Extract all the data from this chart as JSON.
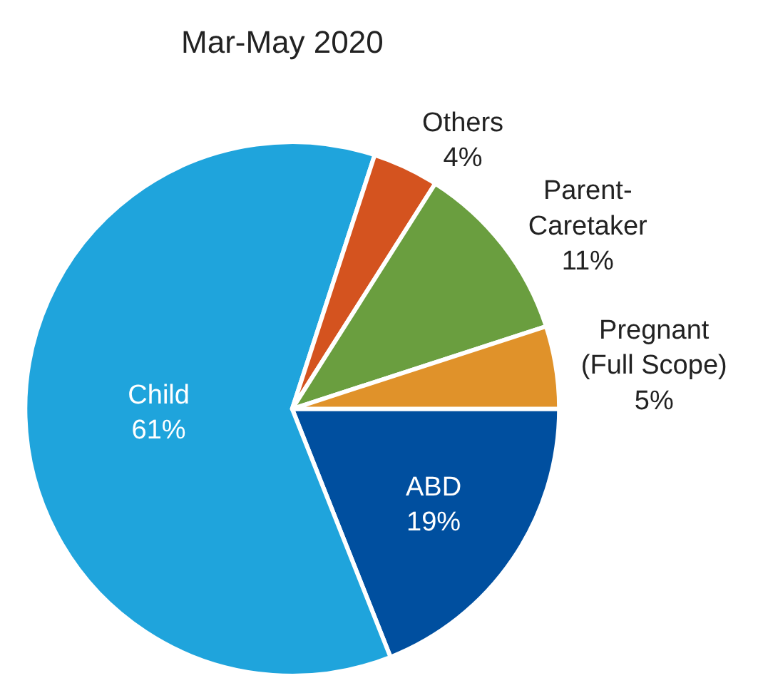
{
  "chart_data": {
    "type": "pie",
    "title": "Mar-May 2020",
    "categories": [
      "ABD",
      "Child",
      "Others",
      "Parent-Caretaker",
      "Pregnant (Full Scope)"
    ],
    "values": [
      19,
      61,
      4,
      11,
      5
    ],
    "value_labels": [
      "19%",
      "61%",
      "4%",
      "11%",
      "5%"
    ],
    "colors": [
      "#004f9f",
      "#1fa4dc",
      "#d4531f",
      "#6a9e3f",
      "#e0922a"
    ],
    "legend": false
  }
}
